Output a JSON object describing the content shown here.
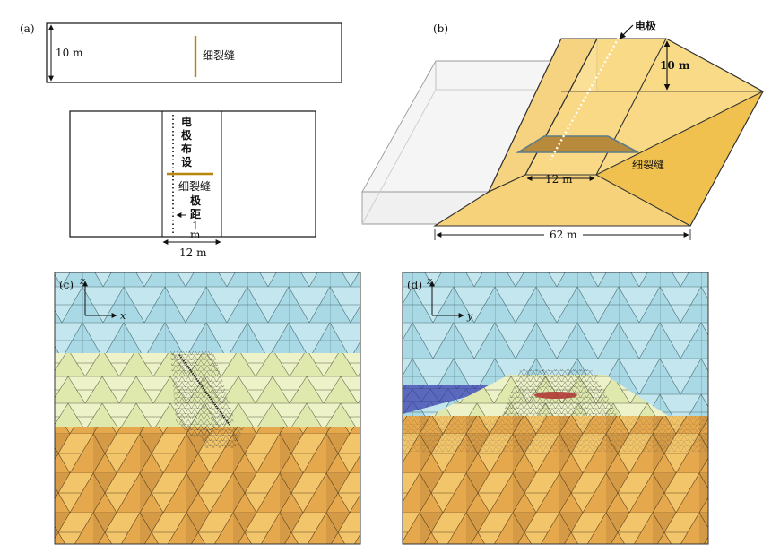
{
  "panel_a": {
    "label": "(a)",
    "top_view": {
      "height": "10 m",
      "crack_label": "细裂缝"
    },
    "plan_view": {
      "electrode_layout": [
        "电",
        "极",
        "布",
        "设"
      ],
      "crack_label": "细裂缝",
      "spacing_label": [
        "极",
        "距",
        "1",
        "m"
      ],
      "width": "12 m"
    }
  },
  "panel_b": {
    "label": "(b)",
    "electrode": "电极",
    "height": "10 m",
    "top_width": "12 m",
    "crack": "细裂缝",
    "base_width": "62 m"
  },
  "panel_c": {
    "label": "(c)",
    "axis_z": "z",
    "axis_x": "x"
  },
  "panel_d": {
    "label": "(d)",
    "axis_z": "z",
    "axis_y": "y"
  },
  "colors": {
    "crack": "#b8860b",
    "dam_yellow": "#f3cb63",
    "dam_light": "#f8dd8e",
    "crack_patch": "#b88a3b",
    "mesh_sky": "#a9d9e4",
    "mesh_embank": "#dfe8ad",
    "mesh_ground": "#eaac4e",
    "mesh_blue": "#5566bb"
  }
}
